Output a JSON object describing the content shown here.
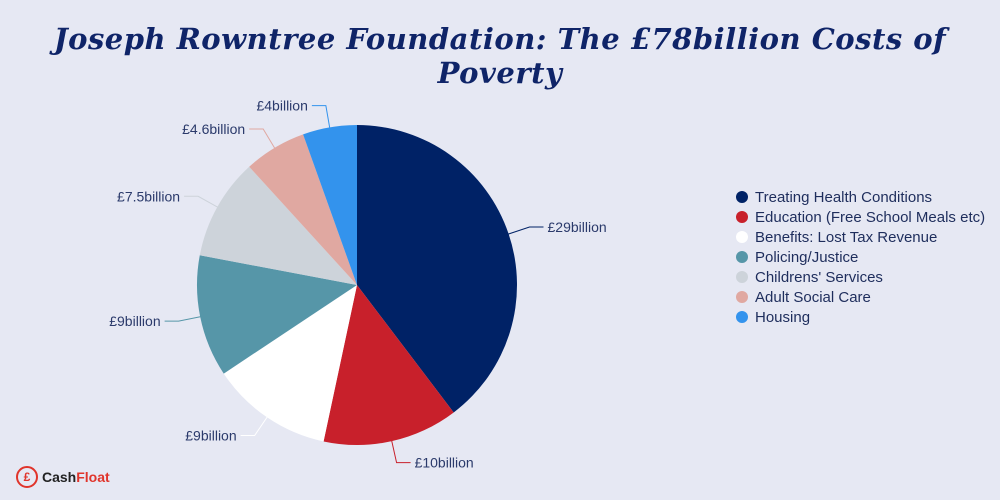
{
  "title": "Joseph Rowntree Foundation: The £78billion Costs of Poverty",
  "brand": {
    "part1": "Cash",
    "part2": "Float"
  },
  "chart_data": {
    "type": "pie",
    "title": "Joseph Rowntree Foundation: The £78billion Costs of Poverty",
    "legend_position": "right",
    "slices": [
      {
        "name": "Treating Health Conditions",
        "value": 29,
        "label": "£29billion",
        "color": "#002266"
      },
      {
        "name": "Education (Free School Meals etc)",
        "value": 10,
        "label": "£10billion",
        "color": "#c8202b"
      },
      {
        "name": "Benefits: Lost Tax Revenue",
        "value": 9,
        "label": "£9billion",
        "color": "#ffffff"
      },
      {
        "name": "Policing/Justice",
        "value": 9,
        "label": "£9billion",
        "color": "#5696a8"
      },
      {
        "name": "Childrens' Services",
        "value": 7.5,
        "label": "£7.5billion",
        "color": "#cdd3da"
      },
      {
        "name": "Adult Social Care",
        "value": 4.6,
        "label": "£4.6billion",
        "color": "#e0a8a1"
      },
      {
        "name": "Housing",
        "value": 4,
        "label": "£4billion",
        "color": "#3393ed"
      }
    ]
  }
}
